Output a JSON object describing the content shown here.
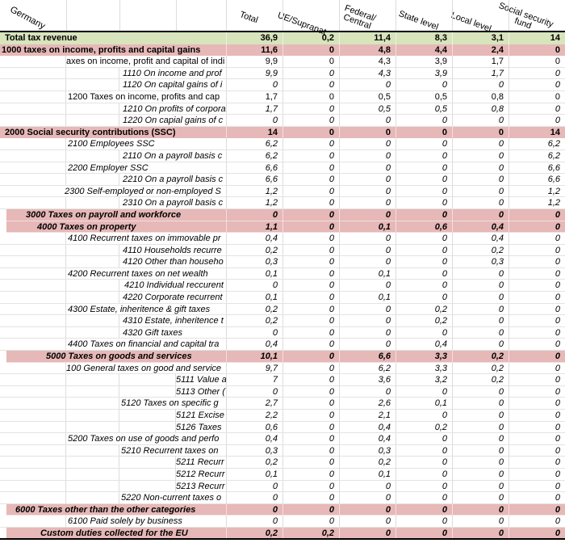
{
  "title": "Germany",
  "columns": [
    {
      "label": "Total"
    },
    {
      "label": "UE/Supranat"
    },
    {
      "label": "Federal/\nCentral"
    },
    {
      "label": "State level"
    },
    {
      "label": "Local level"
    },
    {
      "label": "Social security\nfund"
    }
  ],
  "colors": {
    "total_row_bg": "#d7e4bc",
    "section_row_bg": "#e6b8b7",
    "gridline": "#dcdcdc",
    "table_border": "#000000"
  },
  "rows": [
    {
      "label": "Total tax revenue",
      "style": "total",
      "indent": 6,
      "values": [
        "36,9",
        "0,2",
        "11,4",
        "8,3",
        "3,1",
        "14"
      ]
    },
    {
      "label": "1000 taxes on income, profits and capital gains",
      "style": "section",
      "indent": 2,
      "values": [
        "11,6",
        "0",
        "4,8",
        "4,4",
        "2,4",
        "0"
      ]
    },
    {
      "label": "axes on income, profit and capital of indi",
      "style": "item",
      "indent": 82,
      "values": [
        "9,9",
        "0",
        "4,3",
        "3,9",
        "1,7",
        "0"
      ]
    },
    {
      "label": "1110 On income and prof",
      "style": "item-italic",
      "indent": 152,
      "values": [
        "9,9",
        "0",
        "4,3",
        "3,9",
        "1,7",
        "0"
      ]
    },
    {
      "label": "1120 On capital gains of i",
      "style": "item-italic",
      "indent": 152,
      "values": [
        "0",
        "0",
        "0",
        "0",
        "0",
        "0"
      ]
    },
    {
      "label": "1200 Taxes on income, profits and cap",
      "style": "item",
      "indent": 84,
      "values": [
        "1,7",
        "0",
        "0,5",
        "0,5",
        "0,8",
        "0"
      ]
    },
    {
      "label": "1210 On profits of corpora",
      "style": "item-italic",
      "indent": 152,
      "values": [
        "1,7",
        "0",
        "0,5",
        "0,5",
        "0,8",
        "0"
      ]
    },
    {
      "label": "1220 On capial gains of c",
      "style": "item-italic",
      "indent": 152,
      "values": [
        "0",
        "0",
        "0",
        "0",
        "0",
        "0"
      ]
    },
    {
      "label": "2000 Social security contributions (SSC)",
      "style": "section",
      "indent": 6,
      "values": [
        "14",
        "0",
        "0",
        "0",
        "0",
        "14"
      ]
    },
    {
      "label": "2100 Employees SSC",
      "style": "item-italic",
      "indent": 84,
      "values": [
        "6,2",
        "0",
        "0",
        "0",
        "0",
        "6,2"
      ]
    },
    {
      "label": "2110 On a payroll basis c",
      "style": "item-italic",
      "indent": 152,
      "values": [
        "6,2",
        "0",
        "0",
        "0",
        "0",
        "6,2"
      ]
    },
    {
      "label": "2200 Employer SSC",
      "style": "item-italic",
      "indent": 84,
      "values": [
        "6,6",
        "0",
        "0",
        "0",
        "0",
        "6,6"
      ]
    },
    {
      "label": "2210 On a payroll basis c",
      "style": "item-italic",
      "indent": 152,
      "values": [
        "6,6",
        "0",
        "0",
        "0",
        "0",
        "6,6"
      ]
    },
    {
      "label": "2300 Self-employed or non-employed S",
      "style": "item-italic",
      "indent": 80,
      "values": [
        "1,2",
        "0",
        "0",
        "0",
        "0",
        "1,2"
      ]
    },
    {
      "label": "2310 On a payroll basis c",
      "style": "item-italic",
      "indent": 152,
      "values": [
        "1,2",
        "0",
        "0",
        "0",
        "0",
        "1,2"
      ]
    },
    {
      "label": "3000 Taxes on payroll and workforce",
      "style": "section-italic",
      "indent": 32,
      "values": [
        "0",
        "0",
        "0",
        "0",
        "0",
        "0"
      ]
    },
    {
      "label": "4000 Taxes on property",
      "style": "section-italic",
      "indent": 46,
      "values": [
        "1,1",
        "0",
        "0,1",
        "0,6",
        "0,4",
        "0"
      ]
    },
    {
      "label": "4100 Recurrent taxes on immovable pr",
      "style": "item-italic",
      "indent": 84,
      "values": [
        "0,4",
        "0",
        "0",
        "0",
        "0,4",
        "0"
      ]
    },
    {
      "label": "4110 Households recurre",
      "style": "item-italic",
      "indent": 152,
      "values": [
        "0,2",
        "0",
        "0",
        "0",
        "0,2",
        "0"
      ]
    },
    {
      "label": "4120 Other than househo",
      "style": "item-italic",
      "indent": 152,
      "values": [
        "0,3",
        "0",
        "0",
        "0",
        "0,3",
        "0"
      ]
    },
    {
      "label": "4200 Recurrent taxes on net wealth",
      "style": "item-italic",
      "indent": 84,
      "values": [
        "0,1",
        "0",
        "0,1",
        "0",
        "0",
        "0"
      ]
    },
    {
      "label": "4210 Individual reccurent",
      "style": "item-italic",
      "indent": 154,
      "values": [
        "0",
        "0",
        "0",
        "0",
        "0",
        "0"
      ]
    },
    {
      "label": "4220 Corporate recurrent",
      "style": "item-italic",
      "indent": 152,
      "values": [
        "0,1",
        "0",
        "0,1",
        "0",
        "0",
        "0"
      ]
    },
    {
      "label": "4300 Estate, inheritence & gift taxes",
      "style": "item-italic",
      "indent": 84,
      "values": [
        "0,2",
        "0",
        "0",
        "0,2",
        "0",
        "0"
      ]
    },
    {
      "label": "4310 Estate, inheritence t",
      "style": "item-italic",
      "indent": 152,
      "values": [
        "0,2",
        "0",
        "0",
        "0,2",
        "0",
        "0"
      ]
    },
    {
      "label": "4320 Gift taxes",
      "style": "item-italic",
      "indent": 152,
      "values": [
        "0",
        "0",
        "0",
        "0",
        "0",
        "0"
      ]
    },
    {
      "label": "4400 Taxes on financial and capital tra",
      "style": "item-italic",
      "indent": 84,
      "values": [
        "0,4",
        "0",
        "0",
        "0,4",
        "0",
        "0"
      ]
    },
    {
      "label": "5000 Taxes on goods and services",
      "style": "section-italic",
      "indent": 57,
      "values": [
        "10,1",
        "0",
        "6,6",
        "3,3",
        "0,2",
        "0"
      ]
    },
    {
      "label": "100 General taxes on good and service",
      "style": "item-italic",
      "indent": 82,
      "values": [
        "9,7",
        "0",
        "6,2",
        "3,3",
        "0,2",
        "0"
      ]
    },
    {
      "label": "5111 Value a",
      "style": "item-italic",
      "indent": 218,
      "values": [
        "7",
        "0",
        "3,6",
        "3,2",
        "0,2",
        "0"
      ]
    },
    {
      "label": "5113 Other (",
      "style": "item-italic",
      "indent": 218,
      "values": [
        "0",
        "0",
        "0",
        "0",
        "0",
        "0"
      ]
    },
    {
      "label": "5120 Taxes on specific g",
      "style": "item-italic",
      "indent": 150,
      "values": [
        "2,7",
        "0",
        "2,6",
        "0,1",
        "0",
        "0"
      ]
    },
    {
      "label": "5121 Excise",
      "style": "item-italic",
      "indent": 218,
      "values": [
        "2,2",
        "0",
        "2,1",
        "0",
        "0",
        "0"
      ]
    },
    {
      "label": "5126 Taxes",
      "style": "item-italic",
      "indent": 218,
      "values": [
        "0,6",
        "0",
        "0,4",
        "0,2",
        "0",
        "0"
      ]
    },
    {
      "label": "5200 Taxes on use of goods and perfo",
      "style": "item-italic",
      "indent": 84,
      "values": [
        "0,4",
        "0",
        "0,4",
        "0",
        "0",
        "0"
      ]
    },
    {
      "label": "5210 Recurrent taxes on",
      "style": "item-italic",
      "indent": 150,
      "values": [
        "0,3",
        "0",
        "0,3",
        "0",
        "0",
        "0"
      ]
    },
    {
      "label": "5211 Recurr",
      "style": "item-italic",
      "indent": 218,
      "values": [
        "0,2",
        "0",
        "0,2",
        "0",
        "0",
        "0"
      ]
    },
    {
      "label": "5212 Recurr",
      "style": "item-italic",
      "indent": 218,
      "values": [
        "0,1",
        "0",
        "0,1",
        "0",
        "0",
        "0"
      ]
    },
    {
      "label": "5213 Recurr",
      "style": "item-italic",
      "indent": 218,
      "values": [
        "0",
        "0",
        "0",
        "0",
        "0",
        "0"
      ]
    },
    {
      "label": "5220 Non-current taxes o",
      "style": "item-italic",
      "indent": 150,
      "values": [
        "0",
        "0",
        "0",
        "0",
        "0",
        "0"
      ]
    },
    {
      "label": "6000 Taxes other than the other categories",
      "style": "section-italic",
      "indent": 19,
      "values": [
        "0",
        "0",
        "0",
        "0",
        "0",
        "0"
      ]
    },
    {
      "label": "6100 Paid solely by business",
      "style": "item-italic",
      "indent": 84,
      "values": [
        "0",
        "0",
        "0",
        "0",
        "0",
        "0"
      ]
    },
    {
      "label": "Custom duties collected for the EU",
      "style": "section-italic",
      "indent": 50,
      "values": [
        "0,2",
        "0,2",
        "0",
        "0",
        "0",
        "0"
      ]
    }
  ]
}
